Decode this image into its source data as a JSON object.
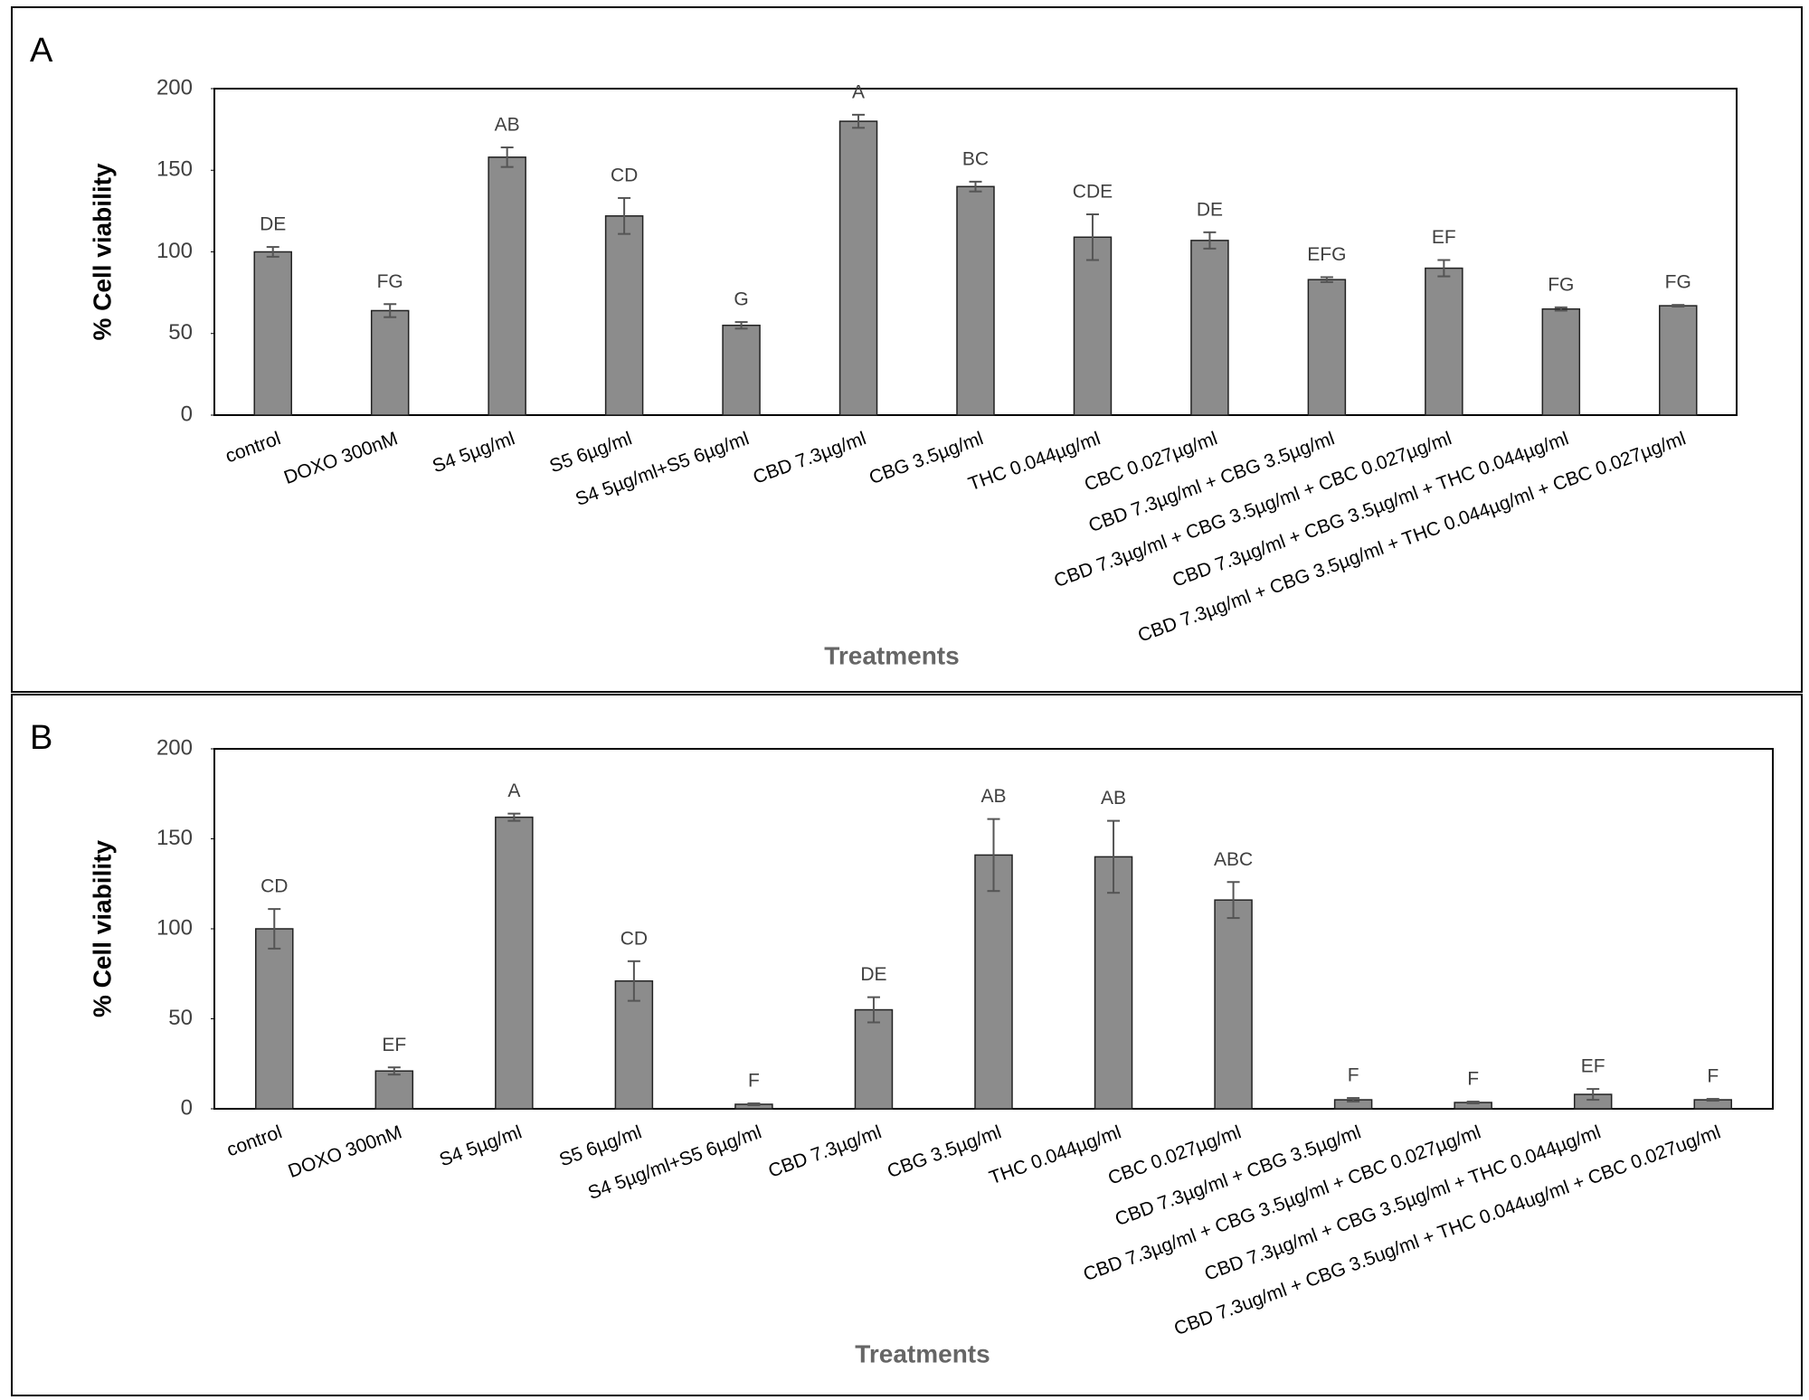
{
  "chart_data": [
    {
      "type": "bar",
      "panel": "A",
      "ylabel": "% Cell viability",
      "xlabel": "Treatments",
      "color": "#8c8c8c",
      "categories": [
        "control",
        "DOXO 300nM",
        "S4 5µg/ml",
        "S5 6µg/ml",
        "S4 5µg/ml+S5 6µg/ml",
        "CBD 7.3µg/ml",
        "CBG 3.5µg/ml",
        "THC 0.044µg/ml",
        "CBC 0.027µg/ml",
        "CBD 7.3µg/ml + CBG 3.5µg/ml",
        "CBD 7.3µg/ml + CBG 3.5µg/ml + CBC 0.027µg/ml",
        "CBD 7.3µg/ml + CBG 3.5µg/ml + THC 0.044µg/ml",
        "CBD 7.3µg/ml + CBG 3.5µg/ml + THC 0.044µg/ml + CBC 0.027µg/ml"
      ],
      "values": [
        100,
        64,
        158,
        122,
        55,
        180,
        140,
        109,
        107,
        83,
        90,
        65,
        67
      ],
      "errors": [
        3,
        4,
        6,
        11,
        2,
        4,
        3,
        14,
        5,
        1.5,
        5,
        1,
        0.5
      ],
      "annotations": [
        "DE",
        "FG",
        "AB",
        "CD",
        "G",
        "A",
        "BC",
        "CDE",
        "DE",
        "EFG",
        "EF",
        "FG",
        "FG"
      ],
      "ylim": [
        0,
        200
      ],
      "yticks": [
        0,
        50,
        100,
        150,
        200
      ]
    },
    {
      "type": "bar",
      "panel": "B",
      "ylabel": "% Cell viability",
      "xlabel": "Treatments",
      "color": "#8c8c8c",
      "categories": [
        "control",
        "DOXO 300nM",
        "S4 5µg/ml",
        "S5 6µg/ml",
        "S4 5µg/ml+S5 6µg/ml",
        "CBD 7.3µg/ml",
        "CBG 3.5µg/ml",
        "THC 0.044µg/ml",
        "CBC 0.027µg/ml",
        "CBD 7.3µg/ml + CBG 3.5µg/ml",
        "CBD 7.3µg/ml + CBG 3.5µg/ml + CBC 0.027µg/ml",
        "CBD 7.3µg/ml + CBG 3.5µg/ml + THC 0.044µg/ml",
        "CBD 7.3ug/ml + CBG 3.5ug/ml + THC 0.044ug/ml + CBC 0.027ug/ml"
      ],
      "values": [
        100,
        21,
        162,
        71,
        2.5,
        55,
        141,
        140,
        116,
        5,
        3.5,
        8,
        5
      ],
      "errors": [
        11,
        2,
        2,
        11,
        0.5,
        7,
        20,
        20,
        10,
        1,
        0.5,
        3,
        0.5
      ],
      "annotations": [
        "CD",
        "EF",
        "A",
        "CD",
        "F",
        "DE",
        "AB",
        "AB",
        "ABC",
        "F",
        "F",
        "EF",
        "F"
      ],
      "ylim": [
        0,
        200
      ],
      "yticks": [
        0,
        50,
        100,
        150,
        200
      ]
    }
  ]
}
